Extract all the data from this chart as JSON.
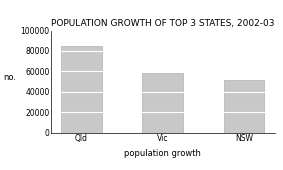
{
  "title": "POPULATION GROWTH OF TOP 3 STATES, 2002-03",
  "categories": [
    "Qld",
    "Vic",
    "NSW"
  ],
  "values": [
    85000,
    58000,
    52000
  ],
  "bar_color": "#c8c8c8",
  "bar_edge_color": "#b0b0b0",
  "xlabel": "population growth",
  "ylabel": "no.",
  "ylim": [
    0,
    100000
  ],
  "yticks": [
    0,
    20000,
    40000,
    60000,
    80000,
    100000
  ],
  "ytick_labels": [
    "0",
    "20000",
    "40000",
    "60000",
    "80000",
    "100000"
  ],
  "stripe_interval": 20000,
  "title_fontsize": 6.5,
  "label_fontsize": 6.0,
  "tick_fontsize": 5.5,
  "background_color": "#ffffff",
  "bar_width": 0.5
}
